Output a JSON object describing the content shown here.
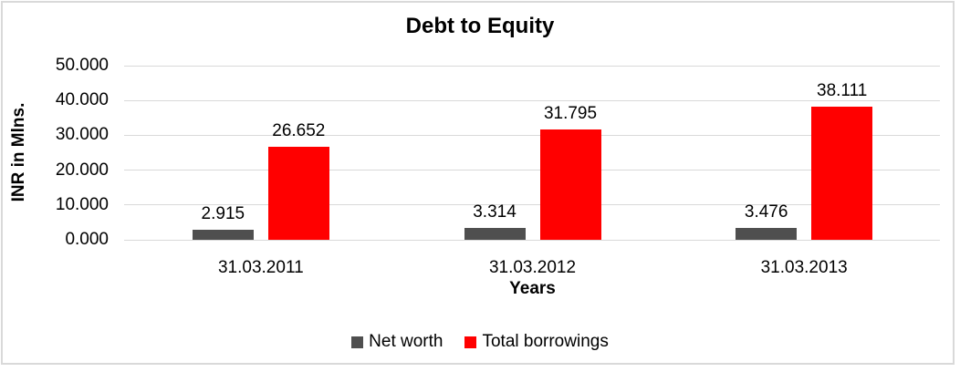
{
  "chart_data": {
    "type": "bar",
    "title": "Debt to Equity",
    "xlabel": "Years",
    "ylabel": "INR in Mlns.",
    "categories": [
      "31.03.2011",
      "31.03.2012",
      "31.03.2013"
    ],
    "series": [
      {
        "name": "Net worth",
        "color": "#4f4f4f",
        "values": [
          2.915,
          3.314,
          3.476
        ],
        "value_labels": [
          "2.915",
          "3.314",
          "3.476"
        ]
      },
      {
        "name": "Total borrowings",
        "color": "#ff0000",
        "values": [
          26.652,
          31.795,
          38.111
        ],
        "value_labels": [
          "26.652",
          "31.795",
          "38.111"
        ]
      }
    ],
    "ylim": [
      0,
      50
    ],
    "yticks": {
      "values": [
        0,
        10,
        20,
        30,
        40,
        50
      ],
      "labels": [
        "0.000",
        "10.000",
        "20.000",
        "30.000",
        "40.000",
        "50.000"
      ]
    },
    "grid": true,
    "legend_position": "bottom",
    "colors": {
      "gridline": "#d9d9d9",
      "frame_border": "#d9d9d9",
      "text": "#000000",
      "background": "#ffffff"
    }
  }
}
